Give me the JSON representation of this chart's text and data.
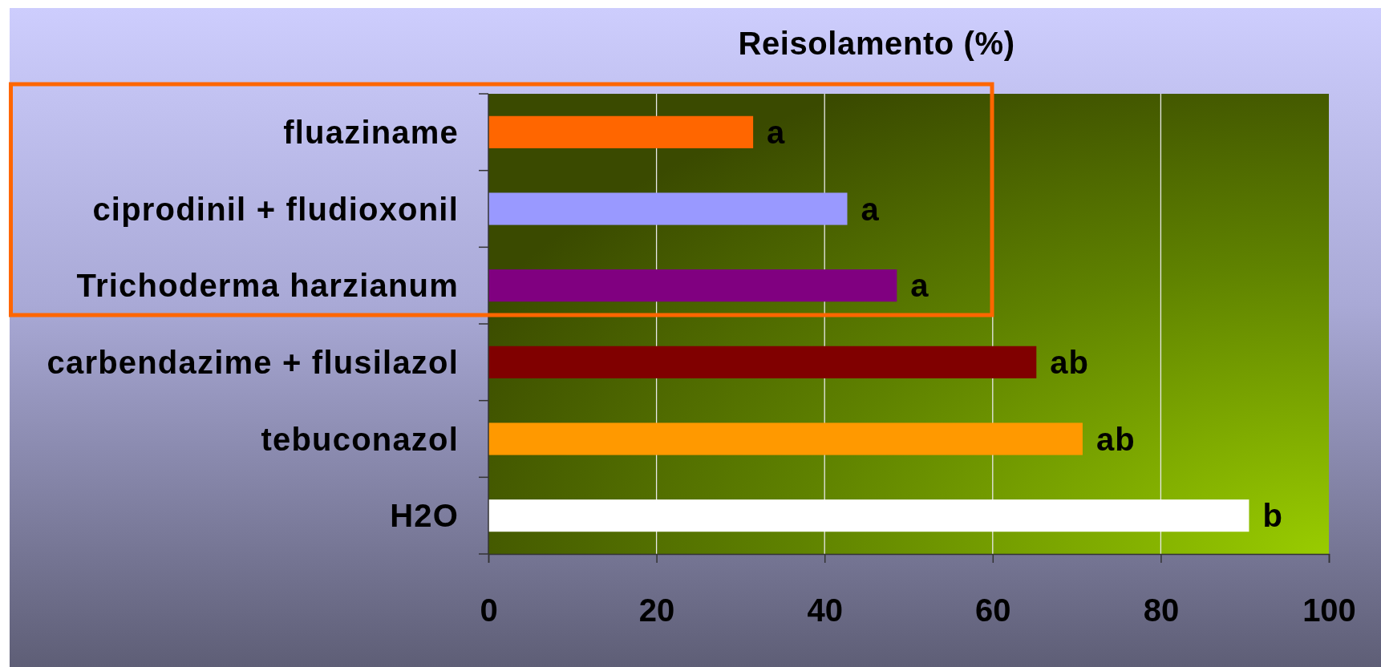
{
  "chart_data": {
    "type": "bar",
    "orientation": "horizontal",
    "title": "Reisolamento (%)",
    "categories": [
      "fluaziname",
      "ciprodinil + fludioxonil",
      "Trichoderma harzianum",
      "carbendazime + flusilazol",
      "tebuconazol",
      "H2O"
    ],
    "values": [
      31.5,
      42.7,
      48.6,
      65.2,
      70.7,
      90.5
    ],
    "colors": [
      "#ff6600",
      "#9999ff",
      "#800080",
      "#800000",
      "#ff9900",
      "#ffffff"
    ],
    "value_labels": [
      "a",
      "a",
      "a",
      "ab",
      "ab",
      "b"
    ],
    "xlim": [
      0,
      100
    ],
    "xticks": [
      0,
      20,
      40,
      60,
      80,
      100
    ],
    "grid": "x"
  }
}
